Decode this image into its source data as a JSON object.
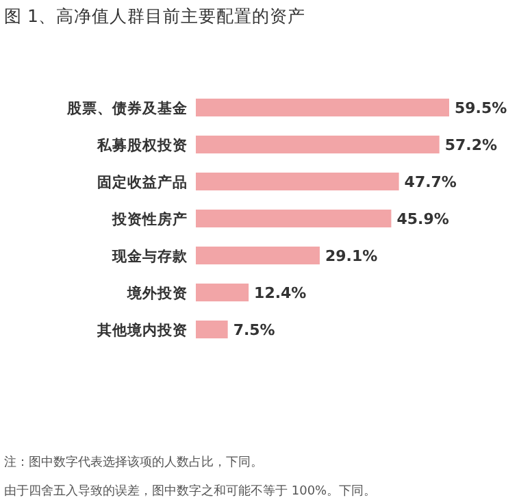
{
  "chart_data": {
    "type": "bar",
    "orientation": "horizontal",
    "title": "图 1、高净值人群目前主要配置的资产",
    "categories": [
      "股票、债券及基金",
      "私募股权投资",
      "固定收益产品",
      "投资性房产",
      "现金与存款",
      "境外投资",
      "其他境内投资"
    ],
    "values": [
      59.5,
      57.2,
      47.7,
      45.9,
      29.1,
      12.4,
      7.5
    ],
    "value_labels": [
      "59.5%",
      "57.2%",
      "47.7%",
      "45.9%",
      "29.1%",
      "12.4%",
      "7.5%"
    ],
    "color": "#f2a5a7",
    "annotations": [
      "注：图中数字代表选择该项的人数占比，下同。",
      "由于四舍五入导致的误差，图中数字之和可能不等于 100%。下同。"
    ]
  }
}
